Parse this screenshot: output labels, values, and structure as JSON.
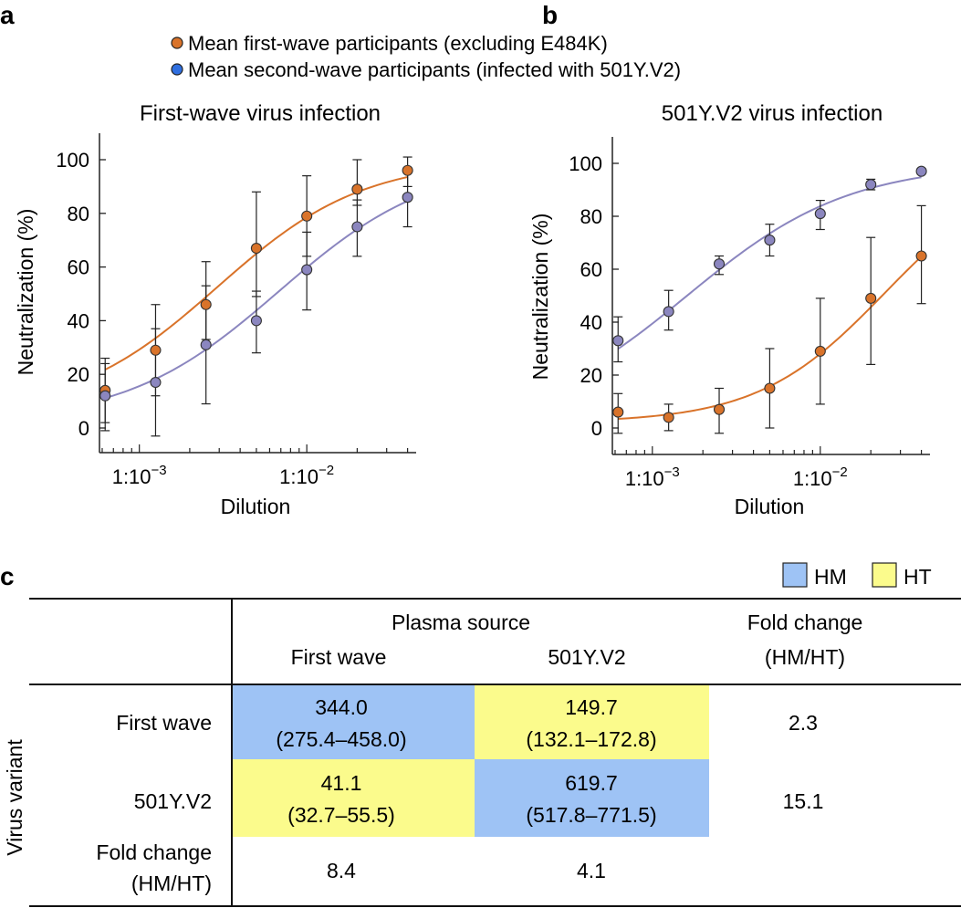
{
  "panels": {
    "a": "a",
    "b": "b",
    "c": "c"
  },
  "colors": {
    "first_wave": "#d9732a",
    "second_wave": "#8b86bf",
    "legend_first": "#d9732a",
    "legend_second": "#2f6fe0",
    "hm": "#9ec3f5",
    "ht": "#fbfb8c"
  },
  "legend": {
    "first": "Mean first-wave participants (excluding E484K)",
    "second": "Mean second-wave participants (infected with 501Y.V2)"
  },
  "chart_data": [
    {
      "type": "scatter",
      "panel": "a",
      "title": "First-wave virus infection",
      "xlabel": "Dilution",
      "ylabel": "Neutralization (%)",
      "xscale": "log",
      "xlim": [
        0.000578,
        0.045
      ],
      "ylim": [
        -10,
        110
      ],
      "yticks": [
        0,
        20,
        40,
        60,
        80,
        100
      ],
      "xticks": [
        {
          "value": 0.001,
          "label": "1:10",
          "exp": "−3"
        },
        {
          "value": 0.01,
          "label": "1:10",
          "exp": "−2"
        }
      ],
      "x": [
        0.000625,
        0.00125,
        0.0025,
        0.005,
        0.01,
        0.02,
        0.04
      ],
      "series": [
        {
          "name": "Mean first-wave participants (excluding E484K)",
          "values": [
            14,
            29,
            46,
            67,
            79,
            89,
            96
          ],
          "err_low": [
            2,
            12,
            33,
            49,
            64,
            83,
            90
          ],
          "err_high": [
            26,
            46,
            62,
            88,
            94,
            100,
            101
          ],
          "fit": {
            "bottom": 5,
            "top": 100,
            "ic50": 0.00292,
            "hill": 1.0
          }
        },
        {
          "name": "Mean second-wave participants (infected with 501Y.V2)",
          "values": [
            12,
            17,
            31,
            40,
            59,
            75,
            86
          ],
          "err_low": [
            -1,
            -3,
            9,
            28,
            44,
            64,
            75
          ],
          "err_high": [
            24,
            37,
            53,
            51,
            73,
            85,
            96
          ],
          "fit": {
            "bottom": 2,
            "top": 100,
            "ic50": 0.00683,
            "hill": 0.95
          }
        }
      ]
    },
    {
      "type": "scatter",
      "panel": "b",
      "title": "501Y.V2 virus infection",
      "xlabel": "Dilution",
      "ylabel": "Neutralization (%)",
      "xscale": "log",
      "xlim": [
        0.000578,
        0.045
      ],
      "ylim": [
        -10,
        110
      ],
      "yticks": [
        0,
        20,
        40,
        60,
        80,
        100
      ],
      "xticks": [
        {
          "value": 0.001,
          "label": "1:10",
          "exp": "−3"
        },
        {
          "value": 0.01,
          "label": "1:10",
          "exp": "−2"
        }
      ],
      "x": [
        0.000625,
        0.00125,
        0.0025,
        0.005,
        0.01,
        0.02,
        0.04
      ],
      "series": [
        {
          "name": "Mean first-wave participants (excluding E484K)",
          "values": [
            6,
            4,
            7,
            15,
            29,
            49,
            65
          ],
          "err_low": [
            -2,
            -1,
            -2,
            0,
            9,
            24,
            47
          ],
          "err_high": [
            13,
            9,
            15,
            30,
            49,
            72,
            84
          ],
          "fit": {
            "bottom": 2,
            "top": 100,
            "ic50": 0.0242,
            "hill": 1.15
          }
        },
        {
          "name": "Mean second-wave participants (infected with 501Y.V2)",
          "values": [
            33,
            44,
            62,
            71,
            81,
            92,
            97
          ],
          "err_low": [
            25,
            37,
            58,
            65,
            75,
            90,
            96
          ],
          "err_high": [
            42,
            52,
            65,
            77,
            86,
            94,
            98
          ],
          "fit": {
            "bottom": 0,
            "top": 100,
            "ic50": 0.00161,
            "hill": 0.9
          }
        }
      ]
    }
  ],
  "table": {
    "plasma_source": "Plasma source",
    "col_first_wave": "First wave",
    "col_501y": "501Y.V2",
    "fold_change_1": "Fold change",
    "fold_change_2": "(HM/HT)",
    "virus_variant": "Virus variant",
    "legend_hm": "HM",
    "legend_ht": "HT",
    "rows": [
      {
        "label": "First wave",
        "c1_value": "344.0",
        "c1_ci": "(275.4–458.0)",
        "c2_value": "149.7",
        "c2_ci": "(132.1–172.8)",
        "fold": "2.3"
      },
      {
        "label": "501Y.V2",
        "c1_value": "41.1",
        "c1_ci": "(32.7–55.5)",
        "c2_value": "619.7",
        "c2_ci": "(517.8–771.5)",
        "fold": "15.1"
      }
    ],
    "fold_row_label_1": "Fold change",
    "fold_row_label_2": "(HM/HT)",
    "fold_row_c1": "8.4",
    "fold_row_c2": "4.1"
  }
}
